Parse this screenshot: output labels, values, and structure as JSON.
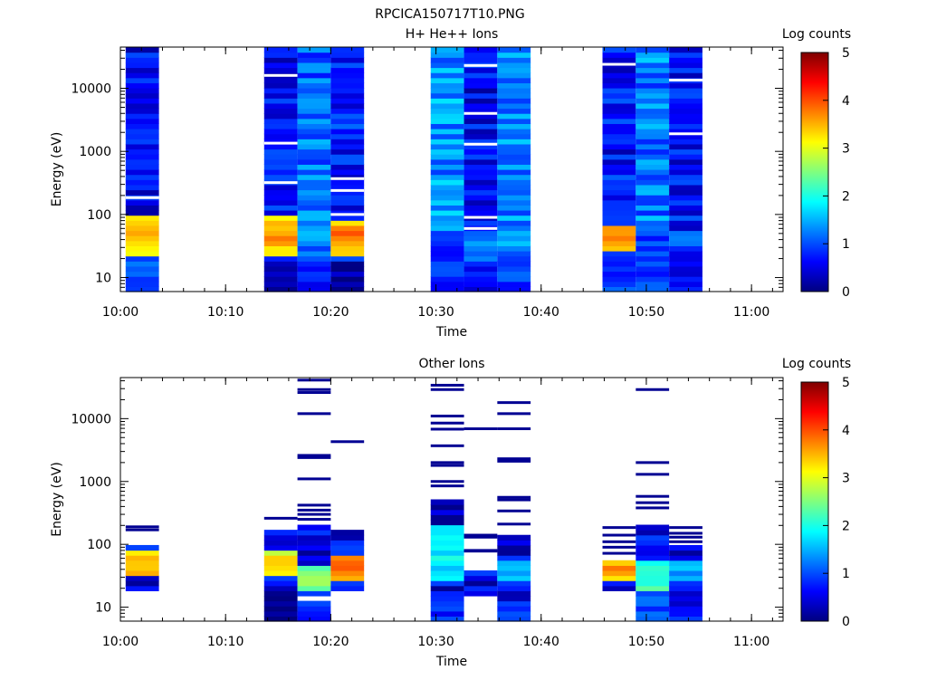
{
  "figure_title": "RPCICA150717T10.PNG",
  "colormap": [
    "#00007f",
    "#0000ff",
    "#007fff",
    "#00ffff",
    "#7fff7f",
    "#ffff00",
    "#ff7f00",
    "#ff0000",
    "#7f0000"
  ],
  "chart_data": [
    {
      "type": "heatmap",
      "title": "H+ He++ Ions",
      "xlabel": "Time",
      "ylabel": "Energy (eV)",
      "colorbar_label": "Log counts",
      "colorbar_ticks": [
        "0",
        "1",
        "2",
        "3",
        "4",
        "5"
      ],
      "clim": [
        0,
        5
      ],
      "xlim": [
        "10:00",
        "11:03"
      ],
      "ylim": [
        6,
        45000
      ],
      "yscale": "log",
      "x_ticks": [
        "10:00",
        "10:10",
        "10:20",
        "10:30",
        "10:40",
        "10:50",
        "11:00"
      ],
      "y_ticks": [
        "10",
        "100",
        "1000",
        "10000"
      ],
      "columns": [
        {
          "t_start": "10:00:30",
          "t_end": "10:03:40",
          "base": 0.6,
          "seed": 11,
          "gaps": [
            185
          ],
          "features": [
            {
              "e_lo": 22,
              "e_hi": 90,
              "value": 3.2,
              "peak": 45
            },
            {
              "e_lo": 6,
              "e_hi": 22,
              "value": 1.0
            }
          ]
        },
        {
          "t_start": "10:13:40",
          "t_end": "10:16:50",
          "base": 0.65,
          "seed": 21,
          "gaps": [
            16000,
            1350,
            320
          ],
          "features": [
            {
              "e_lo": 22,
              "e_hi": 90,
              "value": 3.3,
              "peak": 45
            },
            {
              "e_lo": 6,
              "e_hi": 20,
              "value": 0.2
            }
          ]
        },
        {
          "t_start": "10:16:50",
          "t_end": "10:20:00",
          "base": 1.1,
          "seed": 31,
          "gaps": [],
          "features": [
            {
              "e_lo": 30,
              "e_hi": 90,
              "value": 1.4
            },
            {
              "e_lo": 6,
              "e_hi": 15,
              "value": 0.7
            }
          ]
        },
        {
          "t_start": "10:20:00",
          "t_end": "10:23:10",
          "base": 0.7,
          "seed": 41,
          "gaps": [
            370,
            240,
            100
          ],
          "features": [
            {
              "e_lo": 22,
              "e_hi": 80,
              "value": 3.4,
              "peak": 45
            },
            {
              "e_lo": 6,
              "e_hi": 20,
              "value": 0.2
            }
          ]
        },
        {
          "t_start": "10:29:30",
          "t_end": "10:32:40",
          "base": 1.3,
          "seed": 51,
          "gaps": [],
          "features": [
            {
              "e_lo": 6,
              "e_hi": 40,
              "value": 0.8
            }
          ]
        },
        {
          "t_start": "10:32:40",
          "t_end": "10:35:50",
          "base": 0.55,
          "seed": 61,
          "gaps": [
            23000,
            4000,
            1300,
            90,
            60
          ],
          "features": [
            {
              "e_lo": 20,
              "e_hi": 60,
              "value": 1.2
            },
            {
              "e_lo": 6,
              "e_hi": 12,
              "value": 0.6
            }
          ]
        },
        {
          "t_start": "10:35:50",
          "t_end": "10:39:00",
          "base": 1.2,
          "seed": 71,
          "gaps": [],
          "features": [
            {
              "e_lo": 25,
              "e_hi": 60,
              "value": 1.5
            },
            {
              "e_lo": 6,
              "e_hi": 20,
              "value": 0.9
            }
          ]
        },
        {
          "t_start": "10:45:50",
          "t_end": "10:49:00",
          "base": 0.65,
          "seed": 81,
          "gaps": [
            24000
          ],
          "features": [
            {
              "e_lo": 25,
              "e_hi": 70,
              "value": 3.3,
              "peak": 45
            },
            {
              "e_lo": 6,
              "e_hi": 22,
              "value": 0.9
            }
          ]
        },
        {
          "t_start": "10:49:00",
          "t_end": "10:52:10",
          "base": 1.2,
          "seed": 91,
          "gaps": [],
          "features": [
            {
              "e_lo": 6,
              "e_hi": 60,
              "value": 0.9
            }
          ]
        },
        {
          "t_start": "10:52:10",
          "t_end": "10:55:20",
          "base": 0.65,
          "seed": 101,
          "gaps": [
            13500,
            1900
          ],
          "features": [
            {
              "e_lo": 30,
              "e_hi": 60,
              "value": 1.4
            },
            {
              "e_lo": 6,
              "e_hi": 25,
              "value": 0.6
            }
          ]
        }
      ]
    },
    {
      "type": "heatmap",
      "title": "Other Ions",
      "xlabel": "Time",
      "ylabel": "Energy (eV)",
      "colorbar_label": "Log counts",
      "colorbar_ticks": [
        "0",
        "1",
        "2",
        "3",
        "4",
        "5"
      ],
      "clim": [
        0,
        5
      ],
      "xlim": [
        "10:00",
        "11:03"
      ],
      "ylim": [
        6,
        45000
      ],
      "yscale": "log",
      "x_ticks": [
        "10:00",
        "10:10",
        "10:20",
        "10:30",
        "10:40",
        "10:50",
        "11:00"
      ],
      "y_ticks": [
        "10",
        "100",
        "1000",
        "10000"
      ],
      "columns": [
        {
          "t_start": "10:00:30",
          "t_end": "10:03:40",
          "fill_lo": 20,
          "fill_hi": 105,
          "seed": 12,
          "features": [
            {
              "e_lo": 32,
              "e_hi": 75,
              "value": 3.1,
              "peak": 45
            }
          ],
          "lines": [
            170,
            190
          ]
        },
        {
          "t_start": "10:13:40",
          "t_end": "10:16:50",
          "fill_lo": 6,
          "fill_hi": 170,
          "seed": 22,
          "features": [
            {
              "e_lo": 30,
              "e_hi": 80,
              "value": 3.0,
              "peak": 45
            },
            {
              "e_lo": 6,
              "e_hi": 15,
              "value": 0.1
            }
          ],
          "lines": [
            260
          ]
        },
        {
          "t_start": "10:16:50",
          "t_end": "10:20:00",
          "fill_lo": 6,
          "fill_hi": 200,
          "seed": 32,
          "features": [
            {
              "e_lo": 20,
              "e_hi": 45,
              "value": 2.5
            },
            {
              "e_lo": 6,
              "e_hi": 13,
              "value": 0.9
            }
          ],
          "gaps_range": [
            [
              13,
              16
            ]
          ],
          "lines": [
            41000,
            29000,
            26000,
            12000,
            2600,
            2400,
            1100,
            420,
            350,
            300,
            250
          ]
        },
        {
          "t_start": "10:20:00",
          "t_end": "10:23:10",
          "fill_lo": 20,
          "fill_hi": 170,
          "seed": 42,
          "features": [
            {
              "e_lo": 25,
              "e_hi": 70,
              "value": 3.4,
              "peak": 45
            }
          ],
          "lines": [
            4300
          ]
        },
        {
          "t_start": "10:29:30",
          "t_end": "10:32:40",
          "fill_lo": 6,
          "fill_hi": 520,
          "seed": 52,
          "features": [
            {
              "e_lo": 25,
              "e_hi": 200,
              "value": 1.8
            },
            {
              "e_lo": 6,
              "e_hi": 18,
              "value": 0.8
            }
          ],
          "lines": [
            34000,
            29000,
            11000,
            8500,
            6800,
            3700,
            2000,
            1800,
            1000,
            850
          ]
        },
        {
          "t_start": "10:32:40",
          "t_end": "10:35:50",
          "fill_lo": 15,
          "fill_hi": 36,
          "seed": 62,
          "features": [],
          "lines": [
            6900,
            140,
            130,
            80,
            78
          ]
        },
        {
          "t_start": "10:35:50",
          "t_end": "10:39:00",
          "fill_lo": 6,
          "fill_hi": 140,
          "seed": 72,
          "features": [
            {
              "e_lo": 25,
              "e_hi": 60,
              "value": 1.4
            },
            {
              "e_lo": 6,
              "e_hi": 13,
              "value": 0.8
            }
          ],
          "lines": [
            18000,
            12000,
            6900,
            2300,
            2100,
            560,
            510,
            340,
            210
          ]
        },
        {
          "t_start": "10:45:50",
          "t_end": "10:49:00",
          "fill_lo": 20,
          "fill_hi": 60,
          "seed": 82,
          "features": [
            {
              "e_lo": 28,
              "e_hi": 60,
              "value": 3.2,
              "peak": 45
            }
          ],
          "lines": [
            185,
            140,
            110,
            90,
            72
          ]
        },
        {
          "t_start": "10:49:00",
          "t_end": "10:52:10",
          "fill_lo": 6,
          "fill_hi": 220,
          "seed": 92,
          "features": [
            {
              "e_lo": 20,
              "e_hi": 60,
              "value": 2.1
            },
            {
              "e_lo": 6,
              "e_hi": 20,
              "value": 1.0
            }
          ],
          "lines": [
            29000,
            2000,
            1300,
            580,
            460,
            380
          ]
        },
        {
          "t_start": "10:52:10",
          "t_end": "10:55:20",
          "fill_lo": 6,
          "fill_hi": 90,
          "seed": 102,
          "features": [
            {
              "e_lo": 25,
              "e_hi": 60,
              "value": 1.4
            }
          ],
          "lines": [
            185,
            150,
            130,
            110
          ]
        }
      ]
    }
  ]
}
